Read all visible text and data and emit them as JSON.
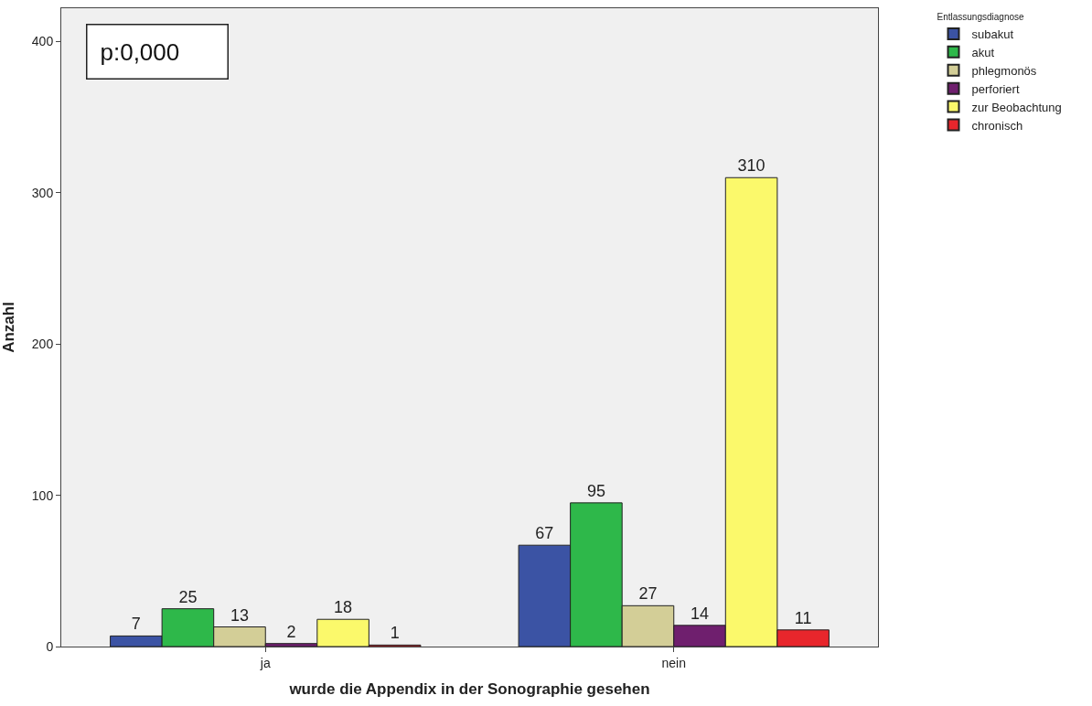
{
  "chart_data": {
    "type": "bar",
    "xlabel": "wurde die Appendix in der Sonographie gesehen",
    "ylabel": "Anzahl",
    "legend_title": "Entlassungsdiagnose",
    "categories": [
      "ja",
      "nein"
    ],
    "series": [
      {
        "name": "subakut",
        "color": "#3b53a4",
        "values": [
          7,
          67
        ]
      },
      {
        "name": "akut",
        "color": "#2eb84a",
        "values": [
          25,
          95
        ]
      },
      {
        "name": "phlegmonös",
        "color": "#d3ce97",
        "values": [
          13,
          27
        ]
      },
      {
        "name": "perforiert",
        "color": "#6f1f6e",
        "values": [
          2,
          14
        ]
      },
      {
        "name": "zur Beobachtung",
        "color": "#fbf96b",
        "values": [
          18,
          310
        ]
      },
      {
        "name": "chronisch",
        "color": "#e8262c",
        "values": [
          1,
          11
        ]
      }
    ],
    "ylim": [
      0,
      422
    ],
    "yticks": [
      0,
      100,
      200,
      300,
      400
    ],
    "grid": false,
    "legend": "top right",
    "data_labels": true,
    "annotations": [
      "p:0,000"
    ]
  }
}
